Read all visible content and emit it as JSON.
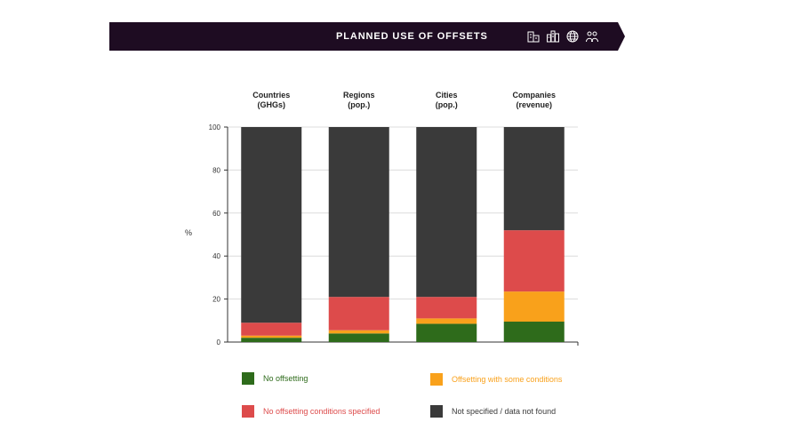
{
  "header": {
    "title": "PLANNED USE OF OFFSETS",
    "icons": [
      "building-icon",
      "city-icon",
      "globe-icon",
      "people-icon"
    ],
    "background_color": "#1e0c22"
  },
  "chart_data": {
    "type": "bar",
    "stacked": true,
    "categories": [
      "Countries\n(GHGs)",
      "Regions\n(pop.)",
      "Cities\n(pop.)",
      "Companies\n(revenue)"
    ],
    "ylabel": "%",
    "ylim": [
      0,
      100
    ],
    "yticks": [
      0,
      20,
      40,
      60,
      80,
      100
    ],
    "grid": true,
    "legend_position": "bottom",
    "series": [
      {
        "name": "No offsetting",
        "color": "#2e6b1b",
        "values": [
          2,
          4,
          8.5,
          9.5
        ]
      },
      {
        "name": "Offsetting with some conditions",
        "color": "#f9a11b",
        "values": [
          1,
          1.5,
          2.5,
          14
        ]
      },
      {
        "name": "No offsetting conditions specified",
        "color": "#dd4b4b",
        "values": [
          6,
          15.5,
          10,
          28.5
        ]
      },
      {
        "name": "Not specified / data not found",
        "color": "#3a3a3a",
        "values": [
          91,
          79,
          79,
          48
        ]
      }
    ]
  },
  "legend": [
    {
      "label": "No offsetting",
      "color": "#2e6b1b",
      "text_color": "#2e6b1b"
    },
    {
      "label": "Offsetting with some conditions",
      "color": "#f9a11b",
      "text_color": "#f9a11b"
    },
    {
      "label": "No offsetting conditions specified",
      "color": "#dd4b4b",
      "text_color": "#dd4b4b"
    },
    {
      "label": "Not specified / data not found",
      "color": "#3a3a3a",
      "text_color": "#3a3a3a"
    }
  ]
}
